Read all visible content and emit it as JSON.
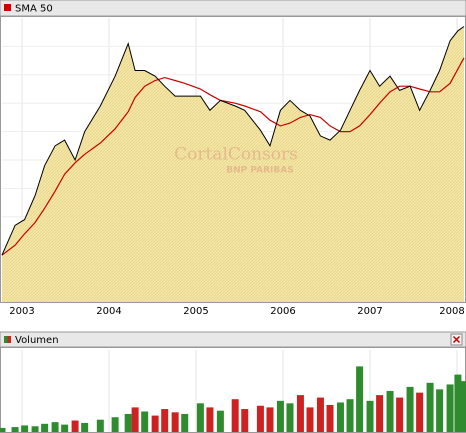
{
  "chart_data": {
    "type": "line",
    "legend": "SMA 50",
    "color": "#000000",
    "x": [
      2002.77,
      2002.92,
      2003.03,
      2003.15,
      2003.26,
      2003.38,
      2003.49,
      2003.61,
      2003.72,
      2003.9,
      2004.07,
      2004.22,
      2004.3,
      2004.41,
      2004.53,
      2004.64,
      2004.76,
      2004.87,
      2005.05,
      2005.16,
      2005.28,
      2005.45,
      2005.56,
      2005.74,
      2005.85,
      2005.97,
      2006.08,
      2006.2,
      2006.31,
      2006.43,
      2006.54,
      2006.66,
      2006.77,
      2006.88,
      2007.0,
      2007.11,
      2007.23,
      2007.34,
      2007.46,
      2007.57,
      2007.69,
      2007.8,
      2007.92,
      2008.01,
      2008.08
    ],
    "values": [
      16.5,
      27,
      29,
      37.5,
      48,
      55,
      57,
      50,
      60,
      69,
      79.5,
      91,
      81.5,
      81.5,
      79.5,
      76,
      72.5,
      72.5,
      72.5,
      67.5,
      71,
      69,
      67.5,
      60.5,
      55,
      67.5,
      71,
      67.5,
      65.5,
      58.5,
      57,
      60.5,
      67.5,
      74.5,
      81.5,
      76,
      79.5,
      74.5,
      76,
      67.5,
      74.5,
      81.5,
      92,
      95.5,
      97
    ],
    "sma": {
      "name": "SMA 50",
      "color": "#cc0000",
      "values": [
        16.5,
        20,
        24,
        28,
        33,
        39,
        45,
        49,
        52,
        56,
        61,
        67,
        72,
        76,
        78,
        79,
        78,
        77,
        75,
        73,
        71,
        70,
        69,
        67,
        64,
        62,
        63,
        65,
        66,
        65,
        62,
        60,
        60,
        62,
        66,
        70,
        74,
        76,
        76,
        75,
        74,
        74,
        77,
        82,
        86
      ]
    },
    "volume": {
      "name": "Volumen",
      "up_color": "#2e8b2e",
      "down_color": "#cc2222",
      "values": [
        5,
        6,
        8,
        7,
        10,
        12,
        9,
        14,
        11,
        15,
        18,
        22,
        30,
        25,
        20,
        28,
        24,
        22,
        35,
        30,
        26,
        40,
        28,
        32,
        30,
        38,
        35,
        45,
        30,
        42,
        33,
        36,
        40,
        80,
        38,
        45,
        50,
        42,
        55,
        48,
        60,
        52,
        58,
        70,
        62
      ],
      "ylim": [
        0,
        100
      ]
    },
    "xlim": [
      2002.77,
      2008.08
    ],
    "xticks": [
      2003,
      2004,
      2005,
      2006,
      2007,
      2008
    ],
    "ylim": [
      0,
      100
    ],
    "grid": true,
    "watermark": [
      "CortalConsors",
      "BNP PARIBAS"
    ]
  }
}
